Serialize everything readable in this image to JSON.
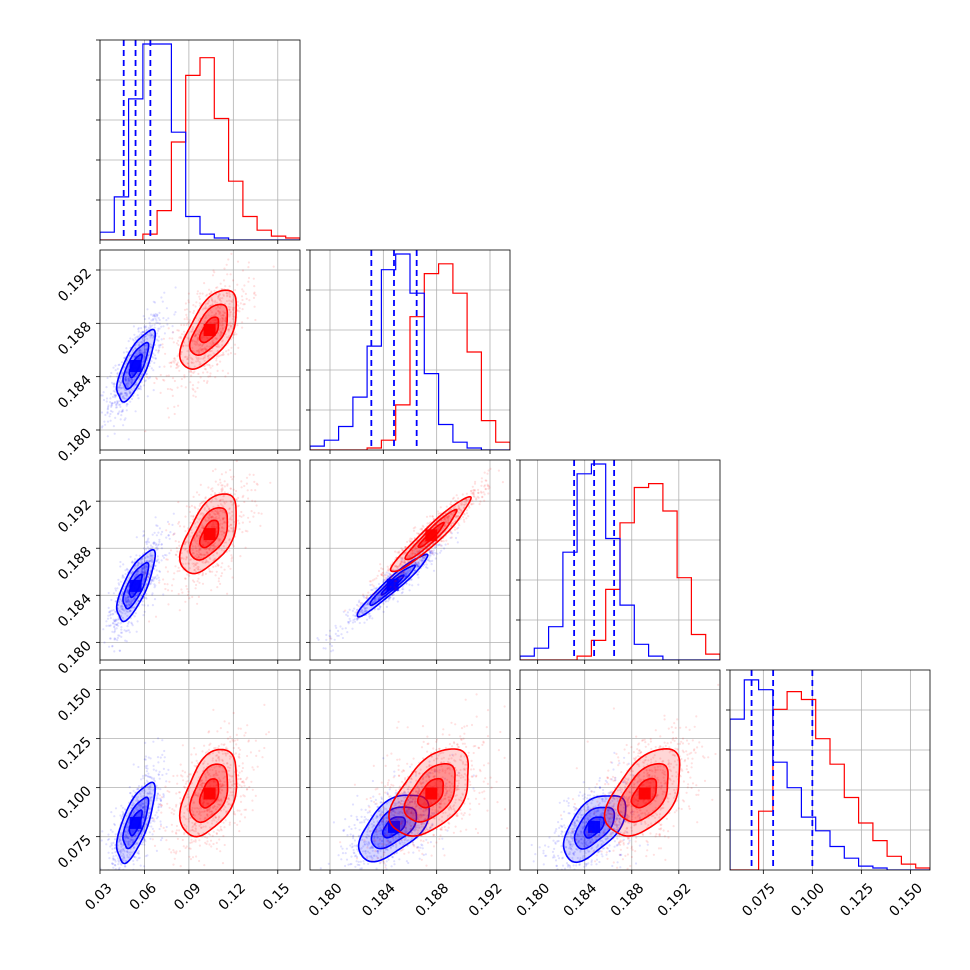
{
  "chart_data": {
    "type": "corner",
    "grid": true,
    "colors": {
      "series_a": "#0000ff",
      "series_b": "#ff0000"
    },
    "series": [
      {
        "color": "#0000ff"
      },
      {
        "color": "#ff0000"
      }
    ],
    "parameters": [
      {
        "range": [
          0.03,
          0.165
        ],
        "ticks": [
          "0.03",
          "0.06",
          "0.09",
          "0.12",
          "0.15"
        ],
        "tick_values": [
          0.03,
          0.06,
          0.09,
          0.12,
          0.15
        ]
      },
      {
        "range": [
          0.1785,
          0.1935
        ],
        "ticks": [
          "0.180",
          "0.184",
          "0.188",
          "0.192"
        ],
        "tick_values": [
          0.18,
          0.184,
          0.188,
          0.192
        ]
      },
      {
        "range": [
          0.1785,
          0.1955
        ],
        "ticks": [
          "0.180",
          "0.184",
          "0.188",
          "0.192"
        ],
        "tick_values": [
          0.18,
          0.184,
          0.188,
          0.192
        ]
      },
      {
        "range": [
          0.058,
          0.16
        ],
        "ticks": [
          "0.075",
          "0.100",
          "0.125",
          "0.150"
        ],
        "tick_values": [
          0.075,
          0.1,
          0.125,
          0.15
        ]
      }
    ],
    "quantiles_blue": [
      [
        0.046,
        0.054,
        0.064
      ],
      [
        0.1831,
        0.1848,
        0.1865
      ],
      [
        0.1831,
        0.1848,
        0.1865
      ],
      [
        0.069,
        0.08,
        0.1
      ]
    ],
    "histograms": [
      {
        "blue": [
          0.04,
          0.22,
          0.72,
          1.0,
          1.0,
          0.55,
          0.12,
          0.03,
          0.01,
          0,
          0,
          0,
          0,
          0
        ],
        "red": [
          0,
          0,
          0,
          0.03,
          0.15,
          0.5,
          0.84,
          0.93,
          0.62,
          0.3,
          0.12,
          0.05,
          0.02,
          0.01
        ]
      },
      {
        "blue": [
          0.02,
          0.05,
          0.12,
          0.27,
          0.53,
          0.92,
          1.0,
          0.8,
          0.39,
          0.13,
          0.04,
          0.01,
          0,
          0
        ],
        "red": [
          0,
          0,
          0,
          0,
          0.01,
          0.05,
          0.23,
          0.68,
          0.9,
          0.95,
          0.8,
          0.5,
          0.15,
          0.04
        ]
      },
      {
        "blue": [
          0.02,
          0.06,
          0.17,
          0.55,
          0.95,
          1.0,
          0.62,
          0.28,
          0.08,
          0.02,
          0,
          0,
          0,
          0
        ],
        "red": [
          0,
          0,
          0,
          0,
          0.02,
          0.1,
          0.36,
          0.7,
          0.88,
          0.9,
          0.76,
          0.42,
          0.13,
          0.03
        ]
      },
      {
        "blue": [
          0.77,
          0.97,
          0.92,
          0.55,
          0.42,
          0.27,
          0.2,
          0.12,
          0.06,
          0.02,
          0.01,
          0,
          0,
          0
        ],
        "red": [
          0,
          0,
          0.3,
          0.82,
          0.91,
          0.87,
          0.67,
          0.54,
          0.37,
          0.24,
          0.15,
          0.07,
          0.03,
          0.01
        ]
      }
    ],
    "scatter_2d": [
      {
        "row": 1,
        "col": 0,
        "blue": {
          "center": [
            0.054,
            0.1848
          ],
          "contours_in_range_units": [
            [
              0.004,
              0.0008
            ],
            [
              0.008,
              0.0016
            ],
            [
              0.012,
              0.0025
            ]
          ],
          "rho": 0.75
        },
        "red": {
          "center": [
            0.104,
            0.1875
          ],
          "contours_in_range_units": [
            [
              0.006,
              0.0009
            ],
            [
              0.012,
              0.0018
            ],
            [
              0.018,
              0.0028
            ]
          ],
          "rho": 0.6
        }
      },
      {
        "row": 2,
        "col": 0,
        "blue": {
          "center": [
            0.054,
            0.1848
          ],
          "contours_in_range_units": [
            [
              0.004,
              0.0009
            ],
            [
              0.008,
              0.0018
            ],
            [
              0.012,
              0.0028
            ]
          ],
          "rho": 0.75
        },
        "red": {
          "center": [
            0.104,
            0.1892
          ],
          "contours_in_range_units": [
            [
              0.006,
              0.0011
            ],
            [
              0.012,
              0.0021
            ],
            [
              0.018,
              0.0032
            ]
          ],
          "rho": 0.55
        }
      },
      {
        "row": 2,
        "col": 1,
        "blue": {
          "center": [
            0.1847,
            0.1849
          ],
          "contours_in_range_units": [
            [
              0.0008,
              0.0008
            ],
            [
              0.0016,
              0.0016
            ],
            [
              0.0025,
              0.0025
            ]
          ],
          "rho": 0.96
        },
        "red": {
          "center": [
            0.1876,
            0.1891
          ],
          "contours_in_range_units": [
            [
              0.0009,
              0.001
            ],
            [
              0.0018,
              0.002
            ],
            [
              0.0028,
              0.003
            ]
          ],
          "rho": 0.95
        }
      },
      {
        "row": 3,
        "col": 0,
        "blue": {
          "center": [
            0.054,
            0.082
          ],
          "contours_in_range_units": [
            [
              0.004,
              0.006
            ],
            [
              0.008,
              0.012
            ],
            [
              0.012,
              0.019
            ]
          ],
          "rho": 0.7
        },
        "red": {
          "center": [
            0.104,
            0.097
          ],
          "contours_in_range_units": [
            [
              0.006,
              0.007
            ],
            [
              0.012,
              0.014
            ],
            [
              0.018,
              0.021
            ]
          ],
          "rho": 0.45
        }
      },
      {
        "row": 3,
        "col": 1,
        "blue": {
          "center": [
            0.1848,
            0.08
          ],
          "contours_in_range_units": [
            [
              0.0008,
              0.005
            ],
            [
              0.0016,
              0.01
            ],
            [
              0.0025,
              0.016
            ]
          ],
          "rho": 0.55
        },
        "red": {
          "center": [
            0.1876,
            0.097
          ],
          "contours_in_range_units": [
            [
              0.0009,
              0.007
            ],
            [
              0.0018,
              0.014
            ],
            [
              0.0028,
              0.021
            ]
          ],
          "rho": 0.5
        }
      },
      {
        "row": 3,
        "col": 2,
        "blue": {
          "center": [
            0.1848,
            0.08
          ],
          "contours_in_range_units": [
            [
              0.0008,
              0.005
            ],
            [
              0.0016,
              0.01
            ],
            [
              0.0025,
              0.016
            ]
          ],
          "rho": 0.55
        },
        "red": {
          "center": [
            0.1891,
            0.097
          ],
          "contours_in_range_units": [
            [
              0.001,
              0.007
            ],
            [
              0.002,
              0.014
            ],
            [
              0.003,
              0.021
            ]
          ],
          "rho": 0.5
        }
      }
    ]
  }
}
